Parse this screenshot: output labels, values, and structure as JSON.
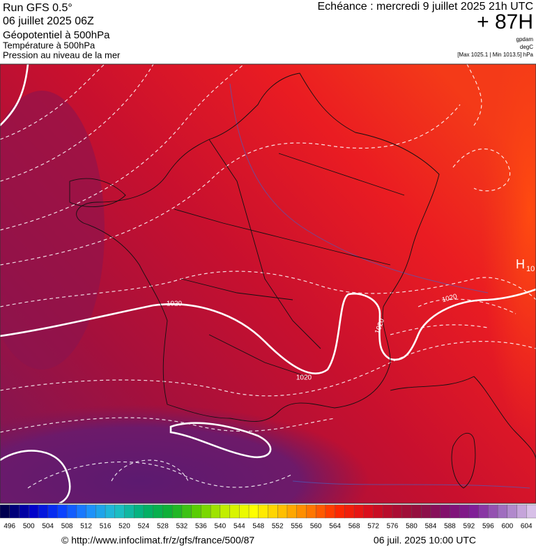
{
  "header": {
    "run": "Run GFS 0.5°",
    "run_date": "06 juillet 2025 06Z",
    "field": "Géopotentiel à 500hPa",
    "field2": "Température à 500hPa",
    "field3": "Pression au niveau de la mer",
    "valid": "Echéance : mercredi 9 juillet 2025 21h UTC",
    "lead": "+ 87H",
    "unit1": "gpdam",
    "unit2": "degC",
    "range": "[Max 1025.1 | Min 1013.5] hPa"
  },
  "map": {
    "contour_labels": [
      "1020",
      "1020",
      "1020",
      "1020"
    ],
    "high_label": "H",
    "high_value": "10"
  },
  "colorbar": {
    "ticks": [
      496,
      500,
      504,
      508,
      512,
      516,
      520,
      524,
      528,
      532,
      536,
      540,
      544,
      548,
      552,
      556,
      560,
      564,
      568,
      572,
      576,
      580,
      584,
      588,
      592,
      596,
      600,
      604
    ],
    "colors": [
      "#000050",
      "#0000c8",
      "#0a3cff",
      "#1e8cff",
      "#20c0d0",
      "#00b070",
      "#10b030",
      "#60d000",
      "#c8f000",
      "#ffff00",
      "#ffc000",
      "#ff7a00",
      "#ff2a00",
      "#e0101a",
      "#b00c30",
      "#901040",
      "#801070",
      "#80209a",
      "#a070c0",
      "#d8c0e8"
    ]
  },
  "footer": {
    "url": "© http://www.infoclimat.fr/z/gfs/france/500/87",
    "timestamp": "06 juil. 2025 10:00 UTC"
  }
}
